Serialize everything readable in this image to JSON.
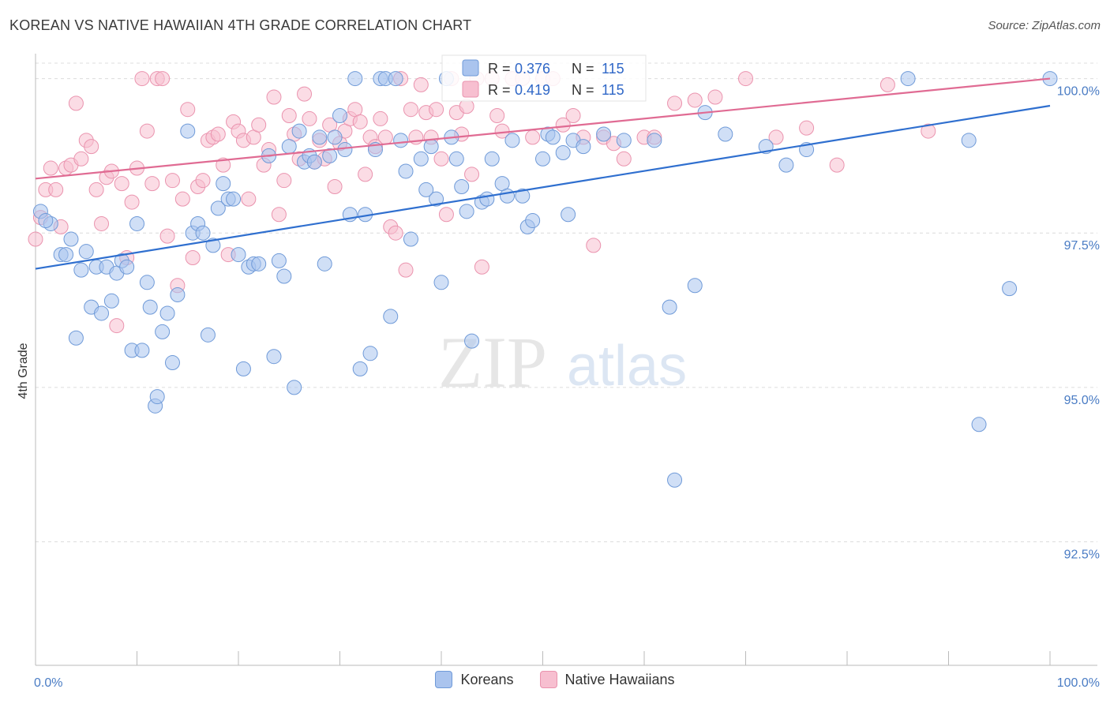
{
  "title": "KOREAN VS NATIVE HAWAIIAN 4TH GRADE CORRELATION CHART",
  "source": "Source: ZipAtlas.com",
  "watermark": {
    "zip": "ZIP",
    "atlas": "atlas"
  },
  "colors": {
    "koreans_fill": "#aac4ee",
    "koreans_stroke": "#6f9ad8",
    "koreans_line": "#2f6fcf",
    "hawaiians_fill": "#f7bfd0",
    "hawaiians_stroke": "#ea93ae",
    "hawaiians_line": "#e06b93",
    "grid": "#dcdcdc",
    "tick_label": "#4a7cc4"
  },
  "stats": [
    {
      "r_label": "R =",
      "r_value": "0.376",
      "n_label": "N =",
      "n_value": "115"
    },
    {
      "r_label": "R =",
      "r_value": "0.419",
      "n_label": "N =",
      "n_value": "115"
    }
  ],
  "chart_data": {
    "type": "scatter",
    "xlabel": "",
    "ylabel": "4th Grade",
    "xlim": [
      0,
      100
    ],
    "ylim": [
      90.5,
      100.25
    ],
    "x_ticks_labels": [
      "0.0%",
      "100.0%"
    ],
    "y_ticks": [
      92.5,
      95.0,
      97.5,
      100.0
    ],
    "y_tick_labels": [
      "92.5%",
      "95.0%",
      "97.5%",
      "100.0%"
    ],
    "grid": "horizontal dashed",
    "legend_position": "bottom-center",
    "series": [
      {
        "name": "Koreans",
        "trend": {
          "x": [
            0,
            100
          ],
          "y": [
            96.92,
            99.56
          ]
        },
        "points": [
          [
            0.5,
            97.85
          ],
          [
            1.5,
            97.65
          ],
          [
            1,
            97.7
          ],
          [
            2.5,
            97.15
          ],
          [
            3,
            97.15
          ],
          [
            3.5,
            97.4
          ],
          [
            4,
            95.8
          ],
          [
            4.5,
            96.9
          ],
          [
            5,
            97.2
          ],
          [
            5.5,
            96.3
          ],
          [
            6,
            96.95
          ],
          [
            6.5,
            96.2
          ],
          [
            7,
            96.95
          ],
          [
            7.5,
            96.4
          ],
          [
            8,
            96.85
          ],
          [
            8.5,
            97.05
          ],
          [
            9,
            96.95
          ],
          [
            9.5,
            95.6
          ],
          [
            10,
            97.65
          ],
          [
            10.5,
            95.6
          ],
          [
            11,
            96.7
          ],
          [
            11.3,
            96.3
          ],
          [
            11.8,
            94.7
          ],
          [
            12,
            94.85
          ],
          [
            12.5,
            95.9
          ],
          [
            13,
            96.2
          ],
          [
            13.5,
            95.4
          ],
          [
            14,
            96.5
          ],
          [
            15,
            99.15
          ],
          [
            15.5,
            97.5
          ],
          [
            16,
            97.65
          ],
          [
            16.5,
            97.5
          ],
          [
            17,
            95.85
          ],
          [
            17.5,
            97.3
          ],
          [
            18,
            97.9
          ],
          [
            18.5,
            98.3
          ],
          [
            19,
            98.05
          ],
          [
            19.5,
            98.05
          ],
          [
            20,
            97.15
          ],
          [
            20.5,
            95.3
          ],
          [
            21,
            96.95
          ],
          [
            21.5,
            97.0
          ],
          [
            22,
            97.0
          ],
          [
            23,
            98.75
          ],
          [
            23.5,
            95.5
          ],
          [
            24,
            97.05
          ],
          [
            24.5,
            96.8
          ],
          [
            25,
            98.9
          ],
          [
            25.5,
            95.0
          ],
          [
            26,
            99.15
          ],
          [
            26.5,
            98.65
          ],
          [
            27,
            98.75
          ],
          [
            27.5,
            98.65
          ],
          [
            28,
            99.05
          ],
          [
            28.5,
            97.0
          ],
          [
            29,
            98.75
          ],
          [
            29.5,
            99.05
          ],
          [
            30,
            99.4
          ],
          [
            30.5,
            98.85
          ],
          [
            31,
            97.8
          ],
          [
            31.5,
            100.0
          ],
          [
            32,
            95.3
          ],
          [
            32.5,
            97.8
          ],
          [
            33,
            95.55
          ],
          [
            33.5,
            98.85
          ],
          [
            34,
            100.0
          ],
          [
            34.5,
            100.0
          ],
          [
            35,
            96.15
          ],
          [
            35.5,
            100.0
          ],
          [
            36,
            99.0
          ],
          [
            36.5,
            98.5
          ],
          [
            37,
            97.4
          ],
          [
            38,
            98.7
          ],
          [
            38.5,
            98.2
          ],
          [
            39,
            98.9
          ],
          [
            39.5,
            98.05
          ],
          [
            40,
            96.7
          ],
          [
            40.5,
            100.0
          ],
          [
            41,
            99.05
          ],
          [
            41.5,
            98.7
          ],
          [
            42,
            98.25
          ],
          [
            42.5,
            97.85
          ],
          [
            43,
            95.75
          ],
          [
            44,
            98.0
          ],
          [
            44.5,
            98.05
          ],
          [
            45,
            98.7
          ],
          [
            46,
            98.3
          ],
          [
            46.5,
            98.1
          ],
          [
            47,
            99.0
          ],
          [
            48,
            98.1
          ],
          [
            48.5,
            97.6
          ],
          [
            49,
            97.7
          ],
          [
            50,
            98.7
          ],
          [
            50.5,
            99.1
          ],
          [
            51,
            99.05
          ],
          [
            52,
            98.8
          ],
          [
            52.5,
            97.8
          ],
          [
            53,
            99.0
          ],
          [
            54,
            98.9
          ],
          [
            56,
            99.1
          ],
          [
            58,
            99.0
          ],
          [
            61,
            99.0
          ],
          [
            63,
            93.5
          ],
          [
            62.5,
            96.3
          ],
          [
            65,
            96.65
          ],
          [
            66,
            99.45
          ],
          [
            68,
            99.1
          ],
          [
            72,
            98.9
          ],
          [
            74,
            98.6
          ],
          [
            76,
            98.85
          ],
          [
            86,
            100.0
          ],
          [
            92,
            99.0
          ],
          [
            93,
            94.4
          ],
          [
            96,
            96.6
          ],
          [
            100,
            100.0
          ]
        ]
      },
      {
        "name": "Native Hawaiians",
        "trend": {
          "x": [
            0,
            100
          ],
          "y": [
            98.38,
            100.0
          ]
        },
        "points": [
          [
            0,
            97.4
          ],
          [
            0.5,
            97.75
          ],
          [
            1,
            98.2
          ],
          [
            1.5,
            98.55
          ],
          [
            2,
            98.2
          ],
          [
            2.5,
            97.6
          ],
          [
            3,
            98.55
          ],
          [
            3.5,
            98.6
          ],
          [
            4,
            99.6
          ],
          [
            4.5,
            98.7
          ],
          [
            5,
            99.0
          ],
          [
            5.5,
            98.9
          ],
          [
            6,
            98.2
          ],
          [
            6.5,
            97.65
          ],
          [
            7,
            98.4
          ],
          [
            7.5,
            98.5
          ],
          [
            8,
            96.0
          ],
          [
            8.5,
            98.3
          ],
          [
            9,
            97.1
          ],
          [
            9.5,
            98.0
          ],
          [
            10,
            98.55
          ],
          [
            10.5,
            100.0
          ],
          [
            11,
            99.15
          ],
          [
            11.5,
            98.3
          ],
          [
            12,
            100.0
          ],
          [
            12.5,
            100.0
          ],
          [
            13,
            97.45
          ],
          [
            13.5,
            98.35
          ],
          [
            14,
            96.65
          ],
          [
            14.5,
            98.05
          ],
          [
            15,
            99.5
          ],
          [
            15.5,
            97.1
          ],
          [
            16,
            98.25
          ],
          [
            16.5,
            98.35
          ],
          [
            17,
            99.0
          ],
          [
            17.5,
            99.05
          ],
          [
            18,
            99.1
          ],
          [
            18.5,
            98.6
          ],
          [
            19,
            97.15
          ],
          [
            19.5,
            99.3
          ],
          [
            20,
            99.15
          ],
          [
            20.5,
            99.0
          ],
          [
            21,
            98.05
          ],
          [
            21.5,
            99.05
          ],
          [
            22,
            99.25
          ],
          [
            22.5,
            98.6
          ],
          [
            23,
            98.85
          ],
          [
            23.5,
            99.7
          ],
          [
            24,
            97.8
          ],
          [
            24.5,
            98.35
          ],
          [
            25,
            99.4
          ],
          [
            25.5,
            99.1
          ],
          [
            26,
            98.7
          ],
          [
            26.5,
            99.75
          ],
          [
            27,
            99.35
          ],
          [
            27.5,
            98.65
          ],
          [
            28,
            99.0
          ],
          [
            28.5,
            98.7
          ],
          [
            29,
            99.25
          ],
          [
            29.5,
            98.25
          ],
          [
            30,
            98.95
          ],
          [
            30.5,
            99.15
          ],
          [
            31,
            99.35
          ],
          [
            31.5,
            99.5
          ],
          [
            32,
            99.3
          ],
          [
            32.5,
            98.45
          ],
          [
            33,
            99.05
          ],
          [
            33.5,
            98.9
          ],
          [
            34,
            99.35
          ],
          [
            34.5,
            99.05
          ],
          [
            35,
            97.6
          ],
          [
            35.5,
            97.5
          ],
          [
            36,
            100.0
          ],
          [
            36.5,
            96.9
          ],
          [
            37,
            99.5
          ],
          [
            37.5,
            99.05
          ],
          [
            38,
            99.9
          ],
          [
            38.5,
            99.45
          ],
          [
            39,
            99.05
          ],
          [
            39.5,
            99.5
          ],
          [
            40,
            98.7
          ],
          [
            40.5,
            97.8
          ],
          [
            41,
            100.0
          ],
          [
            41.5,
            99.45
          ],
          [
            42,
            99.1
          ],
          [
            42.5,
            99.55
          ],
          [
            43,
            98.45
          ],
          [
            43.5,
            100.0
          ],
          [
            44,
            96.95
          ],
          [
            45,
            100.0
          ],
          [
            45.5,
            99.4
          ],
          [
            46,
            99.15
          ],
          [
            47,
            100.0
          ],
          [
            48,
            100.0
          ],
          [
            49,
            99.05
          ],
          [
            50,
            100.0
          ],
          [
            51,
            100.0
          ],
          [
            52,
            99.25
          ],
          [
            53,
            99.4
          ],
          [
            54,
            99.05
          ],
          [
            55,
            97.3
          ],
          [
            56,
            99.05
          ],
          [
            57,
            98.95
          ],
          [
            58,
            98.7
          ],
          [
            60,
            99.05
          ],
          [
            61,
            99.05
          ],
          [
            63,
            99.6
          ],
          [
            65,
            99.65
          ],
          [
            67,
            99.7
          ],
          [
            70,
            100.0
          ],
          [
            73,
            99.05
          ],
          [
            76,
            99.2
          ],
          [
            79,
            98.6
          ],
          [
            84,
            99.9
          ],
          [
            88,
            99.15
          ]
        ]
      }
    ]
  },
  "legend": [
    "Koreans",
    "Native Hawaiians"
  ]
}
